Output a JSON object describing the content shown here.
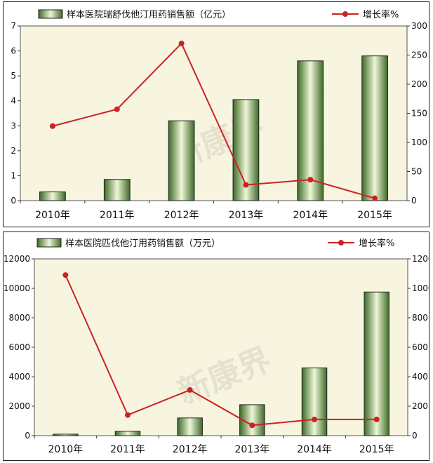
{
  "chart_data": [
    {
      "type": "bar",
      "categories": [
        "2010年",
        "2011年",
        "2012年",
        "2013年",
        "2014年",
        "2015年"
      ],
      "series": [
        {
          "name": "样本医院瑞舒伐他汀用药销售额（亿元）",
          "type": "bar",
          "axis": "left",
          "values": [
            0.35,
            0.85,
            3.2,
            4.05,
            5.6,
            5.8
          ]
        },
        {
          "name": "增长率%",
          "type": "line",
          "axis": "right",
          "values": [
            128,
            157,
            270,
            27,
            36,
            4
          ]
        }
      ],
      "ylim_left": [
        0,
        7
      ],
      "yticks_left": [
        "0",
        "1",
        "2",
        "3",
        "4",
        "5",
        "6",
        "7"
      ],
      "ylim_right": [
        0,
        300
      ],
      "yticks_right": [
        "0",
        "50",
        "100",
        "150",
        "200",
        "250",
        "300"
      ],
      "legend_position": "top",
      "plot_bg": "#f7f4df",
      "bar_color": "#8fbf6a",
      "line_color": "#cc2222",
      "watermark": "新康界"
    },
    {
      "type": "bar",
      "categories": [
        "2010年",
        "2011年",
        "2012年",
        "2013年",
        "2014年",
        "2015年"
      ],
      "series": [
        {
          "name": "样本医院匹伐他汀用药销售额（万元）",
          "type": "bar",
          "axis": "left",
          "values": [
            100,
            300,
            1200,
            2100,
            4600,
            9750
          ]
        },
        {
          "name": "增长率%",
          "type": "line",
          "axis": "right",
          "values": [
            1090,
            140,
            310,
            70,
            110,
            110
          ]
        }
      ],
      "ylim_left": [
        0,
        12000
      ],
      "yticks_left": [
        "0",
        "2000",
        "4000",
        "6000",
        "8000",
        "10000",
        "12000"
      ],
      "ylim_right": [
        0,
        1200
      ],
      "yticks_right": [
        "0",
        "200",
        "400",
        "600",
        "800",
        "1000",
        "1200"
      ],
      "legend_position": "top",
      "plot_bg": "#f7f4df",
      "bar_color": "#8fbf6a",
      "line_color": "#cc2222",
      "watermark": "新康界"
    }
  ]
}
